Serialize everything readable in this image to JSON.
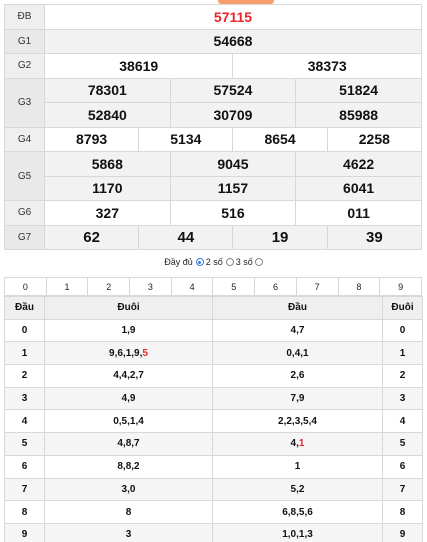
{
  "results": {
    "db": {
      "label": "ĐB",
      "values": [
        "57115"
      ]
    },
    "g1": {
      "label": "G1",
      "values": [
        "54668"
      ]
    },
    "g2": {
      "label": "G2",
      "values": [
        "38619",
        "38373"
      ]
    },
    "g3": {
      "label": "G3",
      "values": [
        "78301",
        "57524",
        "51824",
        "52840",
        "30709",
        "85988"
      ]
    },
    "g4": {
      "label": "G4",
      "values": [
        "8793",
        "5134",
        "8654",
        "2258"
      ]
    },
    "g5": {
      "label": "G5",
      "values": [
        "5868",
        "9045",
        "4622",
        "1170",
        "1157",
        "6041"
      ]
    },
    "g6": {
      "label": "G6",
      "values": [
        "327",
        "516",
        "011"
      ]
    },
    "g7": {
      "label": "G7",
      "values": [
        "62",
        "44",
        "19",
        "39"
      ]
    }
  },
  "options": {
    "full_label": "Đầy đủ",
    "two_digits_label": "2 số",
    "three_digits_label": "3 số",
    "selected": "2 số"
  },
  "digit_filter": [
    "0",
    "1",
    "2",
    "3",
    "4",
    "5",
    "6",
    "7",
    "8",
    "9"
  ],
  "loto": {
    "headers": {
      "dau": "Đầu",
      "duoi": "Đuôi",
      "dau2": "Đầu",
      "duoi2": "Đuôi"
    },
    "rows": [
      {
        "head": "0",
        "tails": "1,9",
        "tails_red": "",
        "heads": "4,7",
        "heads_red": "",
        "tail": "0"
      },
      {
        "head": "1",
        "tails": "9,6,1,9,",
        "tails_red": "5",
        "heads": "0,4,1",
        "heads_red": "",
        "tail": "1"
      },
      {
        "head": "2",
        "tails": "4,4,2,7",
        "tails_red": "",
        "heads": "2,6",
        "heads_red": "",
        "tail": "2"
      },
      {
        "head": "3",
        "tails": "4,9",
        "tails_red": "",
        "heads": "7,9",
        "heads_red": "",
        "tail": "3"
      },
      {
        "head": "4",
        "tails": "0,5,1,4",
        "tails_red": "",
        "heads": "2,2,3,5,4",
        "heads_red": "",
        "tail": "4"
      },
      {
        "head": "5",
        "tails": "4,8,7",
        "tails_red": "",
        "heads": "4,",
        "heads_red": "1",
        "tail": "5"
      },
      {
        "head": "6",
        "tails": "8,8,2",
        "tails_red": "",
        "heads": "1",
        "heads_red": "",
        "tail": "6"
      },
      {
        "head": "7",
        "tails": "3,0",
        "tails_red": "",
        "heads": "5,2",
        "heads_red": "",
        "tail": "7"
      },
      {
        "head": "8",
        "tails": "8",
        "tails_red": "",
        "heads": "6,8,5,6",
        "heads_red": "",
        "tail": "8"
      },
      {
        "head": "9",
        "tails": "3",
        "tails_red": "",
        "heads": "1,0,1,3",
        "heads_red": "",
        "tail": "9"
      }
    ]
  },
  "colors": {
    "special": "#e8262c",
    "accent_tab": "#f5a06a",
    "radio": "#3b7bd8"
  }
}
